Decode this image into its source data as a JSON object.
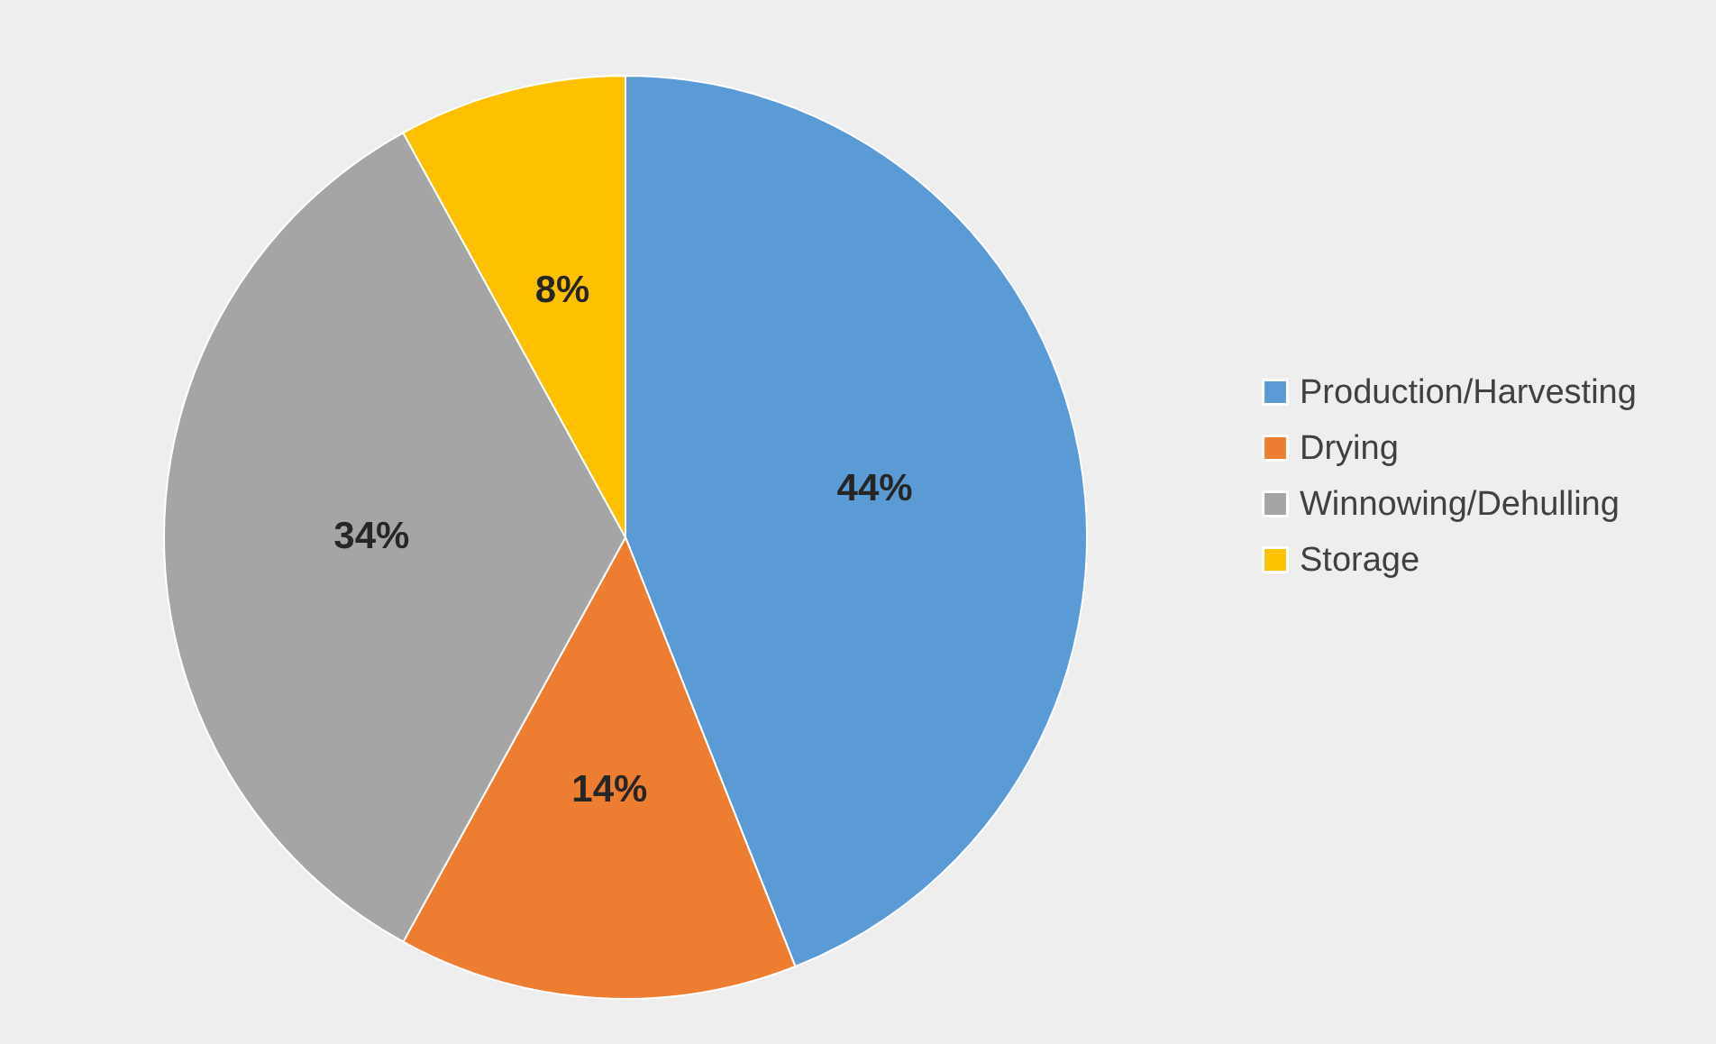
{
  "chart_data": {
    "type": "pie",
    "categories": [
      "Production/Harvesting",
      "Drying",
      "Winnowing/Dehulling",
      "Storage"
    ],
    "values": [
      44,
      14,
      34,
      8
    ],
    "colors": [
      "#5b9bd5",
      "#ed7d31",
      "#a5a5a5",
      "#ffc000"
    ],
    "value_labels": [
      "44%",
      "14%",
      "34%",
      "8%"
    ],
    "legend": "right"
  }
}
